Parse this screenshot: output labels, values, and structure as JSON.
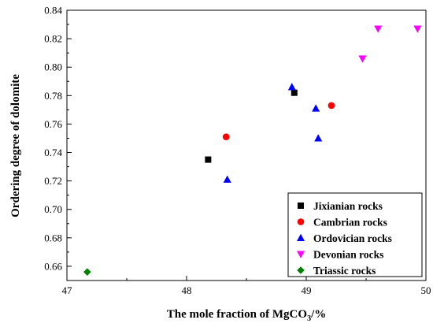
{
  "chart_data": {
    "type": "scatter",
    "xlabel": "The mole fraction of MgCO",
    "xlabel_sub": "3",
    "xlabel_suffix": "/%",
    "ylabel": "Ordering degree of dolomite",
    "xlim": [
      47,
      50
    ],
    "ylim": [
      0.65,
      0.84
    ],
    "xticks": [
      47,
      48,
      49,
      50
    ],
    "xtick_labels": [
      "47",
      "48",
      "49",
      "50"
    ],
    "yticks": [
      0.66,
      0.68,
      0.7,
      0.72,
      0.74,
      0.76,
      0.78,
      0.8,
      0.82,
      0.84
    ],
    "ytick_labels": [
      "0.66",
      "0.68",
      "0.70",
      "0.72",
      "0.74",
      "0.76",
      "0.78",
      "0.80",
      "0.82",
      "0.84"
    ],
    "grid": false,
    "legend_position": "bottom-right",
    "series": [
      {
        "name": "Jixianian rocks",
        "marker": "square",
        "color": "#000000",
        "points": [
          [
            48.18,
            0.735
          ],
          [
            48.9,
            0.782
          ]
        ]
      },
      {
        "name": "Cambrian rocks",
        "marker": "circle",
        "color": "#ff0000",
        "points": [
          [
            48.33,
            0.751
          ],
          [
            49.21,
            0.773
          ]
        ]
      },
      {
        "name": "Ordovician rocks",
        "marker": "triangle-up",
        "color": "#0000ff",
        "points": [
          [
            48.34,
            0.721
          ],
          [
            48.88,
            0.786
          ],
          [
            49.08,
            0.771
          ],
          [
            49.1,
            0.75
          ]
        ]
      },
      {
        "name": "Devonian rocks",
        "marker": "triangle-down",
        "color": "#ff00ff",
        "points": [
          [
            49.47,
            0.806
          ],
          [
            49.6,
            0.827
          ],
          [
            49.93,
            0.827
          ]
        ]
      },
      {
        "name": "Triassic rocks",
        "marker": "diamond",
        "color": "#008000",
        "points": [
          [
            47.17,
            0.656
          ]
        ]
      }
    ]
  }
}
